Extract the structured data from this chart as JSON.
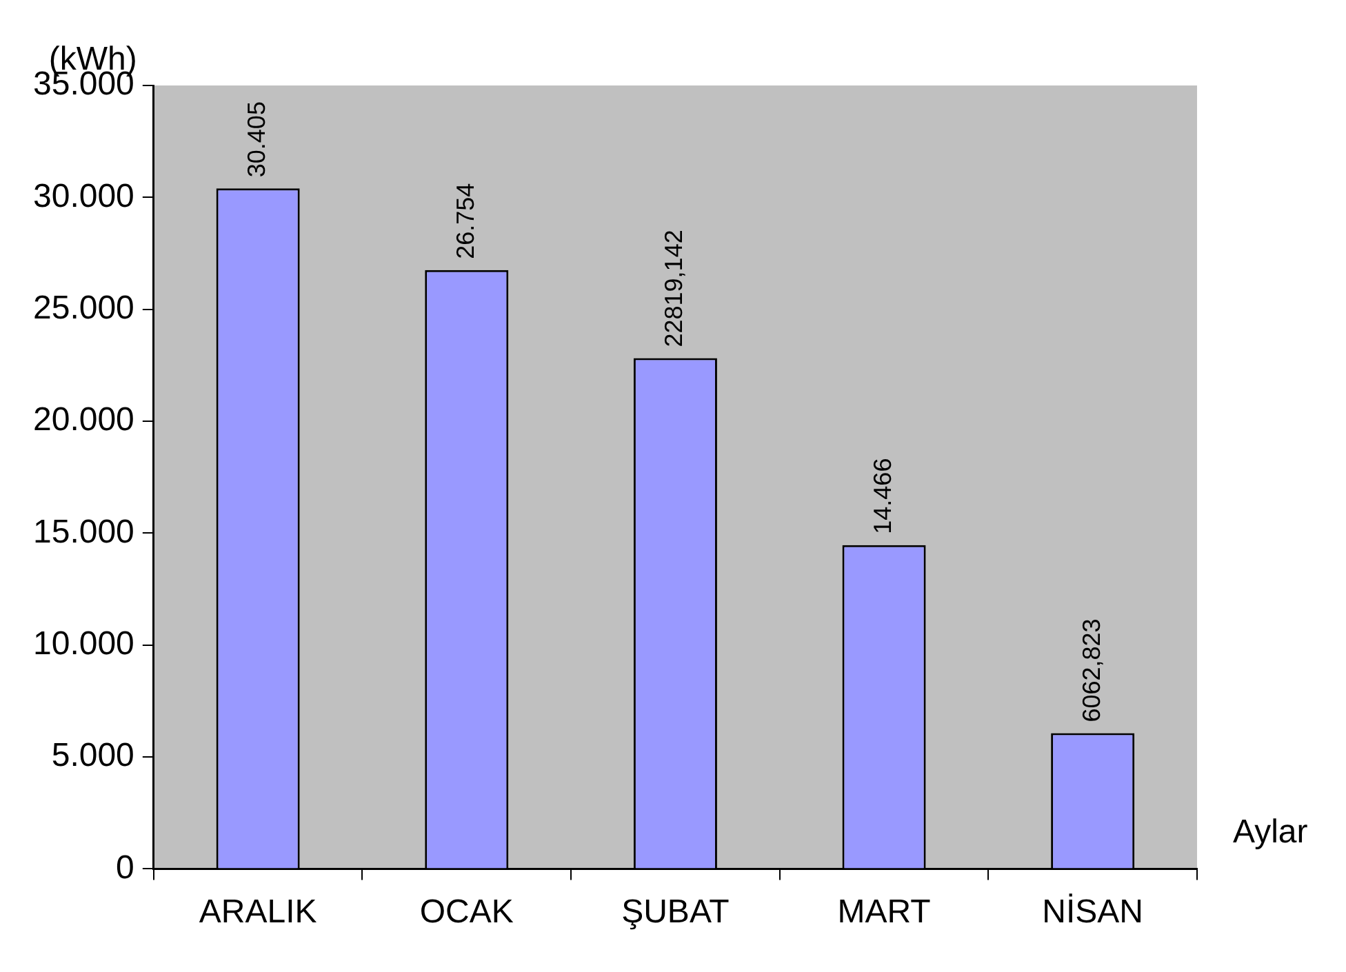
{
  "chart_data": {
    "type": "bar",
    "xlabel": "Aylar",
    "ylabel": "(kWh)",
    "categories": [
      "ARALIK",
      "OCAK",
      "ŞUBAT",
      "MART",
      "NİSAN"
    ],
    "values": [
      30405,
      26754,
      22819.142,
      14466,
      6062.823
    ],
    "value_labels": [
      "30.405",
      "26.754",
      "22819,142",
      "14.466",
      "6062,823"
    ],
    "color": "#9999ff",
    "ylim": [
      0,
      35000
    ],
    "yticks": [
      {
        "value": 0,
        "label": "0"
      },
      {
        "value": 5000,
        "label": "5.000"
      },
      {
        "value": 10000,
        "label": "10.000"
      },
      {
        "value": 15000,
        "label": "15.000"
      },
      {
        "value": 20000,
        "label": "20.000"
      },
      {
        "value": 25000,
        "label": "25.000"
      },
      {
        "value": 30000,
        "label": "30.000"
      },
      {
        "value": 35000,
        "label": "35.000"
      }
    ],
    "grid": false,
    "legend": false
  }
}
